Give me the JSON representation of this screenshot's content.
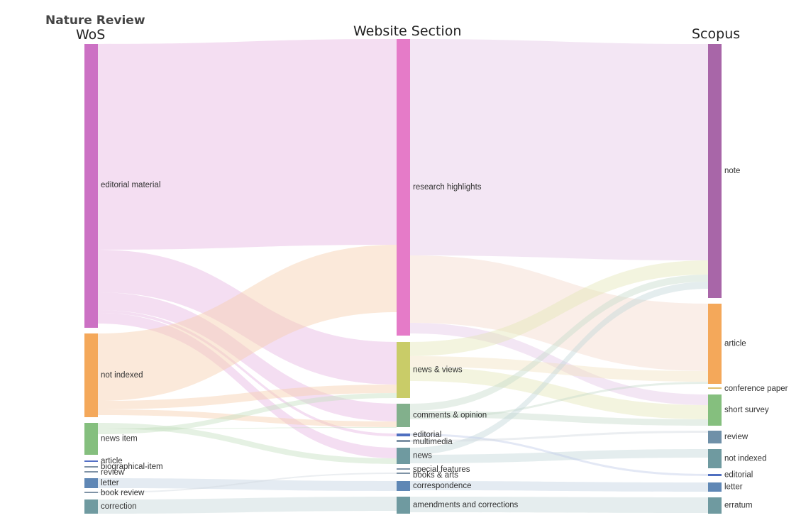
{
  "headers": {
    "col1_top": "Nature Review",
    "col1": "WoS",
    "col2": "Website Section",
    "col3": "Scopus"
  },
  "columns": [
    {
      "nodes": [
        {
          "id": "wos_editorial",
          "label": "editorial material",
          "color": "#cc71c4"
        },
        {
          "id": "wos_notindexed",
          "label": "not indexed",
          "color": "#f4a85a"
        },
        {
          "id": "wos_newsitem",
          "label": "news item",
          "color": "#85bf7e"
        },
        {
          "id": "wos_article",
          "label": "article",
          "color": "#5470c6"
        },
        {
          "id": "wos_bio",
          "label": "biographical-item",
          "color": "#7f93a6"
        },
        {
          "id": "wos_review",
          "label": "review",
          "color": "#7f93a6"
        },
        {
          "id": "wos_letter",
          "label": "letter",
          "color": "#5f87b5"
        },
        {
          "id": "wos_bookreview",
          "label": "book review",
          "color": "#7f93a6"
        },
        {
          "id": "wos_correction",
          "label": "correction",
          "color": "#6f9aa0"
        }
      ]
    },
    {
      "nodes": [
        {
          "id": "ws_research",
          "label": "research highlights",
          "color": "#e57bc8"
        },
        {
          "id": "ws_newsviews",
          "label": "news & views",
          "color": "#c9cc68"
        },
        {
          "id": "ws_comments",
          "label": "comments & opinion",
          "color": "#82b08c"
        },
        {
          "id": "ws_editorial",
          "label": "editorial",
          "color": "#4f6fc0"
        },
        {
          "id": "ws_multimedia",
          "label": "multimedia",
          "color": "#7f93a6"
        },
        {
          "id": "ws_news",
          "label": "news",
          "color": "#6f9aa0"
        },
        {
          "id": "ws_special",
          "label": "special features",
          "color": "#7f93a6"
        },
        {
          "id": "ws_books",
          "label": "books & arts",
          "color": "#7f93a6"
        },
        {
          "id": "ws_corresp",
          "label": "correspondence",
          "color": "#5f87b5"
        },
        {
          "id": "ws_amend",
          "label": "amendments and corrections",
          "color": "#6f9aa0"
        }
      ]
    },
    {
      "nodes": [
        {
          "id": "sc_note",
          "label": "note",
          "color": "#a866a8"
        },
        {
          "id": "sc_article",
          "label": "article",
          "color": "#f4a85a"
        },
        {
          "id": "sc_conf",
          "label": "conference paper",
          "color": "#e0c070"
        },
        {
          "id": "sc_short",
          "label": "short survey",
          "color": "#85bf7e"
        },
        {
          "id": "sc_review",
          "label": "review",
          "color": "#6f90a8"
        },
        {
          "id": "sc_notindexed",
          "label": "not indexed",
          "color": "#6f9aa0"
        },
        {
          "id": "sc_editorial",
          "label": "editorial",
          "color": "#4f6fc0"
        },
        {
          "id": "sc_letter",
          "label": "letter",
          "color": "#5f87b5"
        },
        {
          "id": "sc_erratum",
          "label": "erratum",
          "color": "#6f9aa0"
        }
      ]
    }
  ],
  "links": [
    {
      "source": "wos_editorial",
      "target": "ws_research",
      "color": "#e7b6e2"
    },
    {
      "source": "wos_editorial",
      "target": "ws_newsviews",
      "color": "#e7b6e2"
    },
    {
      "source": "wos_editorial",
      "target": "ws_comments",
      "color": "#e7b6e2"
    },
    {
      "source": "wos_editorial",
      "target": "ws_editorial",
      "color": "#e7b6e2"
    },
    {
      "source": "wos_editorial",
      "target": "ws_news",
      "color": "#e7b6e2"
    },
    {
      "source": "wos_notindexed",
      "target": "ws_research",
      "color": "#f6cfad"
    },
    {
      "source": "wos_notindexed",
      "target": "ws_newsviews",
      "color": "#f6cfad"
    },
    {
      "source": "wos_notindexed",
      "target": "ws_comments",
      "color": "#f6cfad"
    },
    {
      "source": "wos_newsitem",
      "target": "ws_news",
      "color": "#c6dfc2"
    },
    {
      "source": "wos_newsitem",
      "target": "ws_comments",
      "color": "#c6dfc2"
    },
    {
      "source": "wos_newsitem",
      "target": "ws_newsviews",
      "color": "#c6dfc2"
    },
    {
      "source": "wos_letter",
      "target": "ws_corresp",
      "color": "#c4d2e2"
    },
    {
      "source": "wos_correction",
      "target": "ws_amend",
      "color": "#c6d7d9"
    },
    {
      "source": "wos_bookreview",
      "target": "ws_books",
      "color": "#d2d9df"
    },
    {
      "source": "ws_research",
      "target": "sc_note",
      "color": "#e4c7e6"
    },
    {
      "source": "ws_research",
      "target": "sc_article",
      "color": "#f5d9cc"
    },
    {
      "source": "ws_research",
      "target": "sc_short",
      "color": "#e4c7e6"
    },
    {
      "source": "ws_newsviews",
      "target": "sc_note",
      "color": "#e5e6b8"
    },
    {
      "source": "ws_newsviews",
      "target": "sc_article",
      "color": "#f1e3c0"
    },
    {
      "source": "ws_newsviews",
      "target": "sc_short",
      "color": "#e5e6b8"
    },
    {
      "source": "ws_comments",
      "target": "sc_note",
      "color": "#c7dccb"
    },
    {
      "source": "ws_comments",
      "target": "sc_short",
      "color": "#c7dccb"
    },
    {
      "source": "ws_comments",
      "target": "sc_article",
      "color": "#c7dccb"
    },
    {
      "source": "ws_news",
      "target": "sc_note",
      "color": "#c4d8da"
    },
    {
      "source": "ws_news",
      "target": "sc_notindexed",
      "color": "#c4d8da"
    },
    {
      "source": "ws_corresp",
      "target": "sc_letter",
      "color": "#c4d2e2"
    },
    {
      "source": "ws_amend",
      "target": "sc_erratum",
      "color": "#c6d7d9"
    },
    {
      "source": "ws_editorial",
      "target": "sc_editorial",
      "color": "#c0cbe9"
    },
    {
      "source": "ws_multimedia",
      "target": "sc_review",
      "color": "#d2d9df"
    }
  ]
}
